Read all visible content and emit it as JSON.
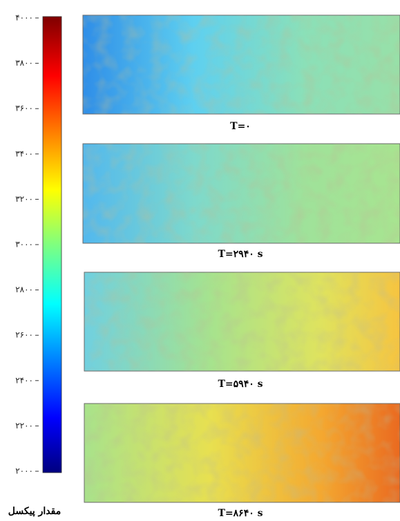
{
  "colorbar": {
    "label": "مقدار پیکسل",
    "ticks": [
      {
        "value": 2000,
        "label": "۲۰۰۰"
      },
      {
        "value": 2200,
        "label": "۲۲۰۰"
      },
      {
        "value": 2400,
        "label": "۲۴۰۰"
      },
      {
        "value": 2600,
        "label": "۲۶۰۰"
      },
      {
        "value": 2800,
        "label": "۲۸۰۰"
      },
      {
        "value": 3000,
        "label": "۳۰۰۰"
      },
      {
        "value": 3200,
        "label": "۳۲۰۰"
      },
      {
        "value": 3400,
        "label": "۳۴۰۰"
      },
      {
        "value": 3600,
        "label": "۳۶۰۰"
      },
      {
        "value": 3800,
        "label": "۳۸۰۰"
      },
      {
        "value": 4000,
        "label": "۴۰۰۰"
      }
    ]
  },
  "panels": [
    {
      "caption": "T=۰"
    },
    {
      "caption": "T=۲۹۴۰ s"
    },
    {
      "caption": "T=۵۹۴۰ s"
    },
    {
      "caption": "T=۸۶۴۰ s"
    }
  ]
}
